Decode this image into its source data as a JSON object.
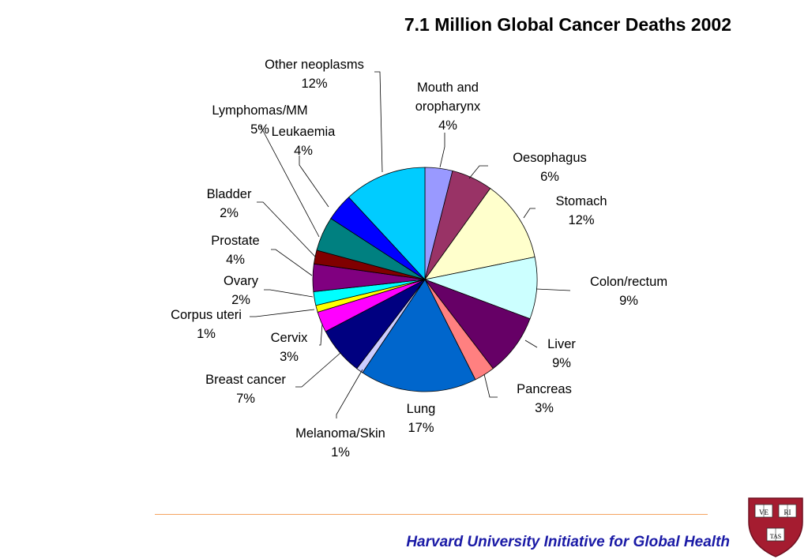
{
  "chart_data": {
    "type": "pie",
    "title": "7.1 Million Global Cancer Deaths 2002",
    "start_angle_deg": 0,
    "direction": "clockwise",
    "slices": [
      {
        "label": "Mouth and oropharynx",
        "label_lines": [
          "Mouth and",
          "oropharynx"
        ],
        "value": 4,
        "pct_label": "4%",
        "color": "#9999ff"
      },
      {
        "label": "Oesophagus",
        "label_lines": [
          "Oesophagus"
        ],
        "value": 6,
        "pct_label": "6%",
        "color": "#993366"
      },
      {
        "label": "Stomach",
        "label_lines": [
          "Stomach"
        ],
        "value": 12,
        "pct_label": "12%",
        "color": "#ffffcc"
      },
      {
        "label": "Colon/rectum",
        "label_lines": [
          "Colon/rectum"
        ],
        "value": 9,
        "pct_label": "9%",
        "color": "#ccffff"
      },
      {
        "label": "Liver",
        "label_lines": [
          "Liver"
        ],
        "value": 9,
        "pct_label": "9%",
        "color": "#660066"
      },
      {
        "label": "Pancreas",
        "label_lines": [
          "Pancreas"
        ],
        "value": 3,
        "pct_label": "3%",
        "color": "#ff8080"
      },
      {
        "label": "Lung",
        "label_lines": [
          "Lung"
        ],
        "value": 17,
        "pct_label": "17%",
        "color": "#0066cc"
      },
      {
        "label": "Melanoma/Skin",
        "label_lines": [
          "Melanoma/Skin"
        ],
        "value": 1,
        "pct_label": "1%",
        "color": "#ccccff"
      },
      {
        "label": "Breast cancer",
        "label_lines": [
          "Breast cancer"
        ],
        "value": 7,
        "pct_label": "7%",
        "color": "#000080"
      },
      {
        "label": "Cervix",
        "label_lines": [
          "Cervix"
        ],
        "value": 3,
        "pct_label": "3%",
        "color": "#ff00ff"
      },
      {
        "label": "Corpus uteri",
        "label_lines": [
          "Corpus uteri"
        ],
        "value": 1,
        "pct_label": "1%",
        "color": "#ffff00"
      },
      {
        "label": "Ovary",
        "label_lines": [
          "Ovary"
        ],
        "value": 2,
        "pct_label": "2%",
        "color": "#00ffff"
      },
      {
        "label": "Prostate",
        "label_lines": [
          "Prostate"
        ],
        "value": 4,
        "pct_label": "4%",
        "color": "#800080"
      },
      {
        "label": "Bladder",
        "label_lines": [
          "Bladder"
        ],
        "value": 2,
        "pct_label": "2%",
        "color": "#800000"
      },
      {
        "label": "Lymphomas/MM",
        "label_lines": [
          "Lymphomas/MM"
        ],
        "value": 5,
        "pct_label": "5%",
        "color": "#008080"
      },
      {
        "label": "Leukaemia",
        "label_lines": [
          "Leukaemia"
        ],
        "value": 4,
        "pct_label": "4%",
        "color": "#0000ff"
      },
      {
        "label": "Other neoplasms",
        "label_lines": [
          "Other neoplasms"
        ],
        "value": 12,
        "pct_label": "12%",
        "color": "#00ccff"
      }
    ]
  },
  "footer": {
    "text": "Harvard University Initiative for Global Health",
    "color": "#1a1aa6"
  },
  "logo": {
    "name": "harvard-shield",
    "book_texts": [
      "VE",
      "RI",
      "TAS"
    ],
    "color": "#a51c30"
  }
}
